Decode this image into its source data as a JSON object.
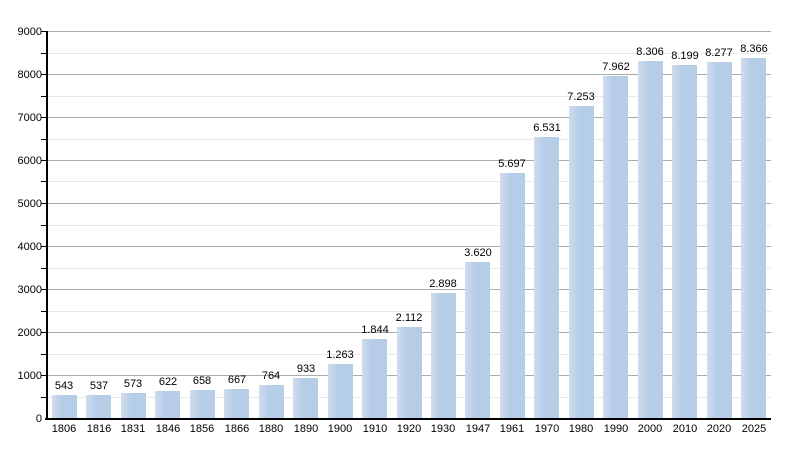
{
  "chart_data": {
    "type": "bar",
    "title": "",
    "xlabel": "",
    "ylabel": "",
    "categories": [
      "1806",
      "1816",
      "1831",
      "1846",
      "1856",
      "1866",
      "1880",
      "1890",
      "1900",
      "1910",
      "1920",
      "1930",
      "1947",
      "1961",
      "1970",
      "1980",
      "1990",
      "2000",
      "2010",
      "2020",
      "2025"
    ],
    "values": [
      543,
      537,
      573,
      622,
      658,
      667,
      764,
      933,
      1263,
      1844,
      2112,
      2898,
      3620,
      5697,
      6531,
      7253,
      7962,
      8306,
      8199,
      8277,
      8366
    ],
    "value_labels": [
      "543",
      "537",
      "573",
      "622",
      "658",
      "667",
      "764",
      "933",
      "1.263",
      "1.844",
      "2.112",
      "2.898",
      "3.620",
      "5.697",
      "6.531",
      "7.253",
      "7.962",
      "8.306",
      "8.199",
      "8.277",
      "8.366"
    ],
    "ylim": [
      0,
      9000
    ],
    "ytick_interval": 1000,
    "yminor_interval": 500,
    "yticks": [
      "0",
      "1000",
      "2000",
      "3000",
      "4000",
      "5000",
      "6000",
      "7000",
      "8000",
      "9000"
    ],
    "grid": "horizontal major and minor, on",
    "legend": "none",
    "colors": {
      "bar_fill": "#b5cde7",
      "bar_edge_highlight": "#d0dcee",
      "major_grid": "#aaaaaa",
      "minor_grid": "#e9e9e9",
      "axis": "#000000",
      "text": "#000000",
      "background": "#ffffff"
    }
  }
}
